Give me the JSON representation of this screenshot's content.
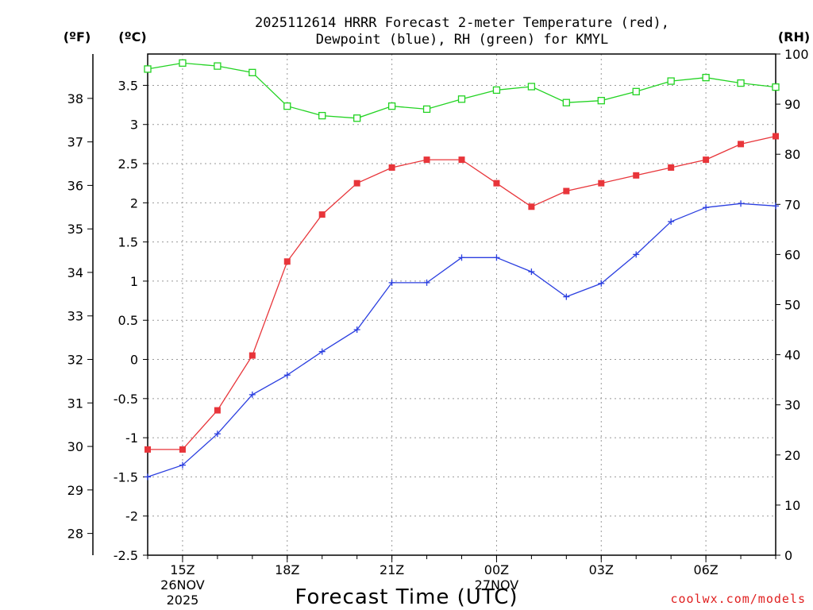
{
  "title": {
    "line1": "2025112614 HRRR Forecast 2-meter Temperature (red),",
    "line2": "Dewpoint (blue), RH (green) for KMYL"
  },
  "axis_units": {
    "fahrenheit": "(ºF)",
    "celsius": "(ºC)",
    "rh": "(RH)"
  },
  "xlabel": "Forecast Time (UTC)",
  "watermark": "coolwx.com/models",
  "colors": {
    "temperature": "#e8353a",
    "dewpoint": "#2b3fe0",
    "rh": "#22d322",
    "grid": "#999999"
  },
  "chart_data": {
    "type": "line",
    "title": "2025112614 HRRR Forecast 2-meter Temperature (red), Dewpoint (blue), RH (green) for KMYL",
    "xlabel": "Forecast Time (UTC)",
    "hours": [
      14,
      15,
      16,
      17,
      18,
      19,
      20,
      21,
      22,
      23,
      24,
      25,
      26,
      27,
      28,
      29,
      30,
      31,
      32
    ],
    "xlim": [
      14,
      32
    ],
    "x_ticks": [
      {
        "hour": 15,
        "label": "15Z",
        "date": "26NOV",
        "year": "2025"
      },
      {
        "hour": 18,
        "label": "18Z"
      },
      {
        "hour": 21,
        "label": "21Z"
      },
      {
        "hour": 24,
        "label": "00Z",
        "date": "27NOV"
      },
      {
        "hour": 27,
        "label": "03Z"
      },
      {
        "hour": 30,
        "label": "06Z"
      }
    ],
    "y_celsius": {
      "label": "(ºC)",
      "range": [
        -2.5,
        3.9
      ],
      "ticks": [
        -2.5,
        -2,
        -1.5,
        -1,
        -0.5,
        0,
        0.5,
        1,
        1.5,
        2,
        2.5,
        3,
        3.5
      ],
      "tick_labels": [
        "-2.5",
        "-2",
        "-1.5",
        "-1",
        "-0.5",
        "0",
        "0.5",
        "1",
        "1.5",
        "2",
        "2.5",
        "3",
        "3.5"
      ]
    },
    "y_fahrenheit": {
      "label": "(ºF)",
      "ticks": [
        28,
        29,
        30,
        31,
        32,
        33,
        34,
        35,
        36,
        37,
        38
      ],
      "tick_labels": [
        "28",
        "29",
        "30",
        "31",
        "32",
        "33",
        "34",
        "35",
        "36",
        "37",
        "38"
      ]
    },
    "y_rh": {
      "label": "(RH)",
      "range": [
        0,
        100
      ],
      "ticks": [
        0,
        10,
        20,
        30,
        40,
        50,
        60,
        70,
        80,
        90,
        100
      ],
      "tick_labels": [
        "0",
        "10",
        "20",
        "30",
        "40",
        "50",
        "60",
        "70",
        "80",
        "90",
        "100"
      ]
    },
    "series": [
      {
        "name": "Temperature (red)",
        "axis": "celsius",
        "marker": "filled-square",
        "values": [
          -1.15,
          -1.15,
          -0.65,
          0.05,
          1.25,
          1.85,
          2.25,
          2.45,
          2.55,
          2.55,
          2.25,
          1.95,
          2.15,
          2.25,
          2.35,
          2.45,
          2.55,
          2.75,
          2.85
        ]
      },
      {
        "name": "Dewpoint (blue)",
        "axis": "celsius",
        "marker": "plus",
        "values": [
          -1.5,
          -1.35,
          -0.95,
          -0.45,
          -0.2,
          0.1,
          0.38,
          0.98,
          0.98,
          1.3,
          1.3,
          1.12,
          0.8,
          0.97,
          1.34,
          1.76,
          1.94,
          1.99,
          1.96
        ]
      },
      {
        "name": "RH (green)",
        "axis": "rh",
        "marker": "open-square",
        "values": [
          97,
          98.2,
          97.6,
          96.3,
          89.6,
          87.7,
          87.2,
          89.6,
          89.0,
          91.0,
          92.8,
          93.5,
          90.3,
          90.7,
          92.5,
          94.6,
          95.3,
          94.2,
          93.4
        ]
      }
    ]
  }
}
